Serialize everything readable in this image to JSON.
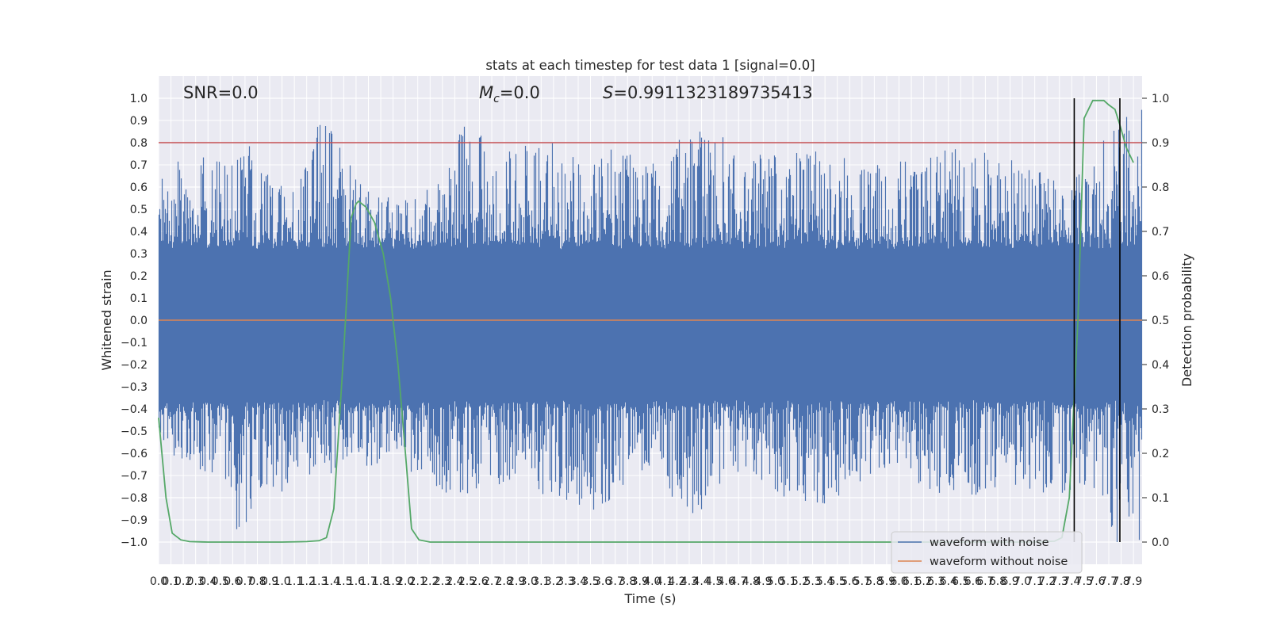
{
  "chart_data": {
    "type": "line",
    "title": "stats at each timestep for test data 1 [signal=0.0]",
    "xlabel": "Time (s)",
    "ylabel": "Whitened strain",
    "y2label": "Detection probability",
    "xlim": [
      0.0,
      7.97
    ],
    "ylim": [
      -1.1,
      1.1
    ],
    "y2lim": [
      -0.05,
      1.05
    ],
    "x_ticks": [
      "0.0",
      "0.1",
      "0.2",
      "0.3",
      "0.4",
      "0.5",
      "0.6",
      "0.7",
      "0.8",
      "0.9",
      "1.0",
      "1.1",
      "1.2",
      "1.3",
      "1.4",
      "1.5",
      "1.6",
      "1.7",
      "1.8",
      "1.9",
      "2.0",
      "2.1",
      "2.2",
      "2.3",
      "2.4",
      "2.5",
      "2.6",
      "2.7",
      "2.8",
      "2.9",
      "3.0",
      "3.1",
      "3.2",
      "3.3",
      "3.4",
      "3.5",
      "3.6",
      "3.7",
      "3.8",
      "3.9",
      "4.0",
      "4.1",
      "4.2",
      "4.3",
      "4.4",
      "4.5",
      "4.6",
      "4.7",
      "4.8",
      "4.9",
      "5.0",
      "5.1",
      "5.2",
      "5.3",
      "5.4",
      "5.5",
      "5.6",
      "5.7",
      "5.8",
      "5.9",
      "6.0",
      "6.1",
      "6.2",
      "6.3",
      "6.4",
      "6.5",
      "6.6",
      "6.7",
      "6.8",
      "6.9",
      "7.0",
      "7.1",
      "7.2",
      "7.3",
      "7.4",
      "7.5",
      "7.6",
      "7.7",
      "7.8",
      "7.9"
    ],
    "y_ticks": [
      "1.0",
      "0.9",
      "0.8",
      "0.7",
      "0.6",
      "0.5",
      "0.4",
      "0.3",
      "0.2",
      "0.1",
      "0.0",
      "-0.1",
      "-0.2",
      "-0.3",
      "-0.4",
      "-0.5",
      "-0.6",
      "-0.7",
      "-0.8",
      "-0.9",
      "-1.0"
    ],
    "y2_ticks": [
      "1.0",
      "0.9",
      "0.8",
      "0.7",
      "0.6",
      "0.5",
      "0.4",
      "0.3",
      "0.2",
      "0.1",
      "0.0"
    ],
    "threshold": 0.9,
    "vlines": [
      7.42,
      7.79
    ],
    "annotations": {
      "snr": "SNR=0.0",
      "mc_symbol": "M",
      "mc_sub": "c",
      "mc_value": "=0.0",
      "s_symbol": "S",
      "s_value": "=0.9911323189735413"
    },
    "legend": {
      "position": "lower right",
      "entries": [
        {
          "label": "waveform with noise",
          "color": "#4c72b0"
        },
        {
          "label": "waveform without noise",
          "color": "#dd8452"
        }
      ]
    },
    "colors": {
      "noise": "#4c72b0",
      "clean": "#dd8452",
      "probability": "#55a868",
      "threshold": "#c44e52",
      "vline": "#000000",
      "background": "#eaeaf2",
      "grid": "#ffffff"
    },
    "series": [
      {
        "name": "waveform with noise",
        "kind": "dense noise band",
        "envelope_upper": [
          [
            0.07,
            0.7
          ],
          [
            0.09,
            0.86
          ],
          [
            0.25,
            0.58
          ],
          [
            0.36,
            0.74
          ],
          [
            0.52,
            0.75
          ],
          [
            0.61,
            0.7
          ],
          [
            0.72,
            0.8
          ],
          [
            0.95,
            0.62
          ],
          [
            1.15,
            0.65
          ],
          [
            1.3,
            0.9
          ],
          [
            1.43,
            0.86
          ],
          [
            1.6,
            0.64
          ],
          [
            1.78,
            0.56
          ],
          [
            2.1,
            0.55
          ],
          [
            2.4,
            0.74
          ],
          [
            2.44,
            0.89
          ],
          [
            2.53,
            0.87
          ],
          [
            2.8,
            0.76
          ],
          [
            3.2,
            0.82
          ],
          [
            3.48,
            0.72
          ],
          [
            3.7,
            0.78
          ],
          [
            4.0,
            0.72
          ],
          [
            4.13,
            0.8
          ],
          [
            4.45,
            0.88
          ],
          [
            4.8,
            0.73
          ],
          [
            5.1,
            0.79
          ],
          [
            5.3,
            0.78
          ],
          [
            5.7,
            0.72
          ],
          [
            6.0,
            0.72
          ],
          [
            6.3,
            0.77
          ],
          [
            6.64,
            0.78
          ],
          [
            6.8,
            0.74
          ],
          [
            7.0,
            0.74
          ],
          [
            7.15,
            0.75
          ],
          [
            7.35,
            0.63
          ],
          [
            7.6,
            0.7
          ],
          [
            7.72,
            0.95
          ]
        ],
        "envelope_lower": [
          [
            0.1,
            -0.6
          ],
          [
            0.24,
            -0.66
          ],
          [
            0.5,
            -0.73
          ],
          [
            0.64,
            -1.0
          ],
          [
            0.85,
            -0.85
          ],
          [
            1.3,
            -0.7
          ],
          [
            1.6,
            -0.68
          ],
          [
            2.0,
            -0.67
          ],
          [
            2.4,
            -0.8
          ],
          [
            2.9,
            -0.75
          ],
          [
            3.58,
            -0.87
          ],
          [
            4.0,
            -0.66
          ],
          [
            4.29,
            -0.93
          ],
          [
            4.6,
            -0.71
          ],
          [
            5.08,
            -0.8
          ],
          [
            5.42,
            -0.83
          ],
          [
            5.9,
            -0.66
          ],
          [
            6.3,
            -0.79
          ],
          [
            6.64,
            -0.79
          ],
          [
            6.87,
            -0.74
          ],
          [
            7.2,
            -0.79
          ],
          [
            7.4,
            -0.81
          ],
          [
            7.55,
            -0.73
          ],
          [
            7.69,
            -1.0
          ]
        ]
      },
      {
        "name": "waveform without noise",
        "kind": "line",
        "x": [
          0.0,
          7.97
        ],
        "y": [
          0.0,
          0.0
        ]
      },
      {
        "kind": "line",
        "axis": "right",
        "x": [
          0.0,
          0.06,
          0.11,
          0.18,
          0.25,
          0.4,
          1.0,
          1.2,
          1.3,
          1.36,
          1.42,
          1.5,
          1.56,
          1.6,
          1.62,
          1.68,
          1.75,
          1.82,
          1.88,
          1.94,
          2.0,
          2.05,
          2.11,
          2.2,
          3.0,
          4.0,
          5.0,
          6.0,
          6.9,
          7.1,
          7.26,
          7.32,
          7.38,
          7.45,
          7.5,
          7.57,
          7.66,
          7.7,
          7.75,
          7.79,
          7.84,
          7.9
        ],
        "y": [
          0.28,
          0.1,
          0.02,
          0.005,
          0.001,
          0.0,
          0.0,
          0.001,
          0.003,
          0.01,
          0.075,
          0.43,
          0.73,
          0.762,
          0.768,
          0.755,
          0.72,
          0.65,
          0.55,
          0.4,
          0.2,
          0.03,
          0.005,
          0.0,
          0.0,
          0.0,
          0.0,
          0.0,
          0.0,
          0.0,
          0.002,
          0.01,
          0.1,
          0.5,
          0.955,
          0.995,
          0.995,
          0.985,
          0.975,
          0.94,
          0.89,
          0.855
        ]
      }
    ]
  }
}
